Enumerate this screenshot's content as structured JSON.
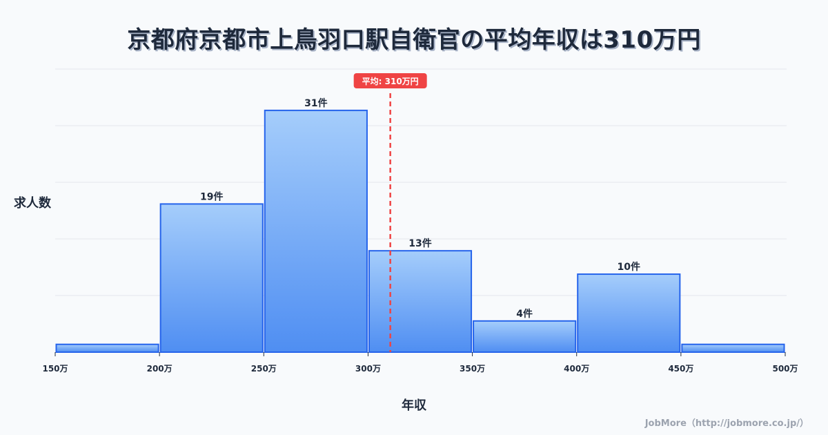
{
  "title": "京都府京都市上鳥羽口駅自衛官の平均年収は310万円",
  "axis": {
    "ylabel": "求人数",
    "xlabel": "年収"
  },
  "footer": "JobMore（http://jobmore.co.jp/）",
  "mean": {
    "value": 310,
    "label": "平均: 310万円",
    "color": "#ef4444"
  },
  "colors": {
    "bar_top": "#a5cdfb",
    "bar_bottom": "#4f8ef2",
    "bar_stroke": "#2563eb",
    "grid": "#e5e7eb"
  },
  "chart_data": {
    "type": "bar",
    "title": "京都府京都市上鳥羽口駅自衛官の平均年収は310万円",
    "xlabel": "年収",
    "ylabel": "求人数",
    "bin_edges": [
      150,
      200,
      250,
      300,
      350,
      400,
      450,
      500
    ],
    "tick_labels": [
      "150万",
      "200万",
      "250万",
      "300万",
      "350万",
      "400万",
      "450万",
      "500万"
    ],
    "categories": [
      "150-200万",
      "200-250万",
      "250-300万",
      "300-350万",
      "350-400万",
      "400-450万",
      "450-500万"
    ],
    "values": [
      1,
      19,
      31,
      13,
      4,
      10,
      1
    ],
    "data_labels": [
      "",
      "19件",
      "31件",
      "13件",
      "4件",
      "10件",
      ""
    ],
    "xlim": [
      150,
      500
    ],
    "ylim": [
      0,
      36.3
    ],
    "grid": true,
    "annotations": [
      {
        "type": "vline",
        "x": 310,
        "label": "平均: 310万円"
      }
    ]
  }
}
